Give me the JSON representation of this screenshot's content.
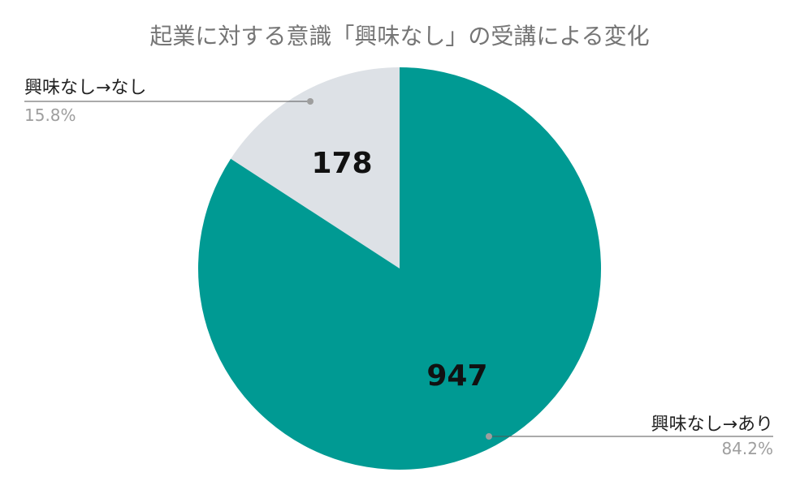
{
  "chart_data": {
    "type": "pie",
    "title": "起業に対する意識「興味なし」の受講による変化",
    "slices": [
      {
        "label": "興味なし→なし",
        "value": 178,
        "percent": "15.8%",
        "color": "#dde1e6"
      },
      {
        "label": "興味なし→あり",
        "value": 947,
        "percent": "84.2%",
        "color": "#009a93"
      }
    ],
    "start": "12 o'clock",
    "direction": "counterclockwise-first-slice"
  }
}
